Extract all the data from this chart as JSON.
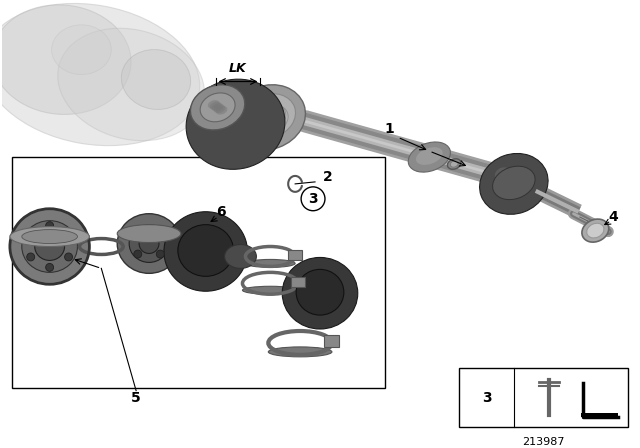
{
  "background_color": "#ffffff",
  "diagram_number": "213987",
  "fig_width": 6.4,
  "fig_height": 4.48,
  "dpi": 100,
  "label_fontsize": 10,
  "footnote_fontsize": 8
}
